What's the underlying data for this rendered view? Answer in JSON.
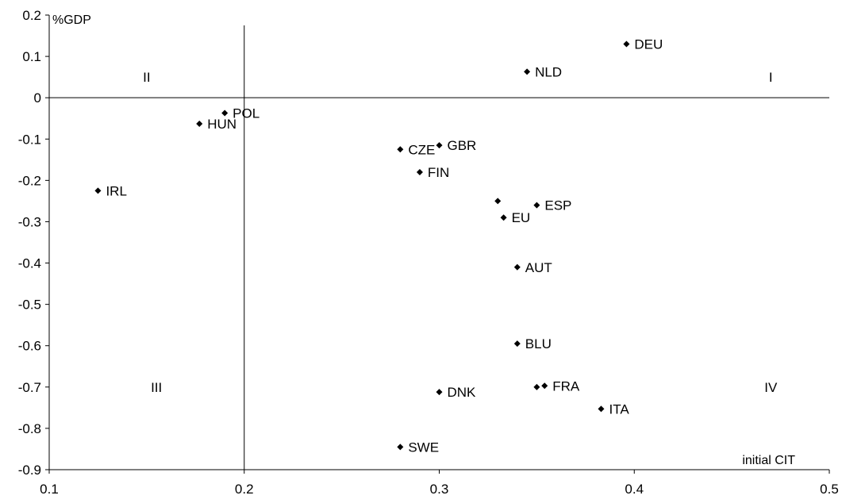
{
  "chart_data": {
    "type": "scatter",
    "title": "",
    "xlabel": "initial CIT",
    "ylabel": "%GDP",
    "xlim": [
      0.1,
      0.5
    ],
    "ylim": [
      -0.9,
      0.2
    ],
    "x_ticks": [
      0.1,
      0.2,
      0.3,
      0.4,
      0.5
    ],
    "x_tick_labels": [
      "0.1",
      "0.2",
      "0.3",
      "0.4",
      "0.5"
    ],
    "y_ticks": [
      0.2,
      0.1,
      0,
      -0.1,
      -0.2,
      -0.3,
      -0.4,
      -0.5,
      -0.6,
      -0.7,
      -0.8,
      -0.9
    ],
    "y_tick_labels": [
      "0.2",
      "0.1",
      "0",
      "-0.1",
      "-0.2",
      "-0.3",
      "-0.4",
      "-0.5",
      "-0.6",
      "-0.7",
      "-0.8",
      "-0.9"
    ],
    "grid": false,
    "divider_lines": {
      "x": 0.2,
      "y": 0
    },
    "quadrant_labels": [
      {
        "text": "I",
        "x": 0.47,
        "y": 0.05
      },
      {
        "text": "II",
        "x": 0.15,
        "y": 0.05
      },
      {
        "text": "III",
        "x": 0.155,
        "y": -0.7
      },
      {
        "text": "IV",
        "x": 0.47,
        "y": -0.7
      }
    ],
    "points": [
      {
        "label": "DEU",
        "x": 0.396,
        "y": 0.13
      },
      {
        "label": "NLD",
        "x": 0.345,
        "y": 0.063
      },
      {
        "label": "POL",
        "x": 0.19,
        "y": -0.037
      },
      {
        "label": "HUN",
        "x": 0.177,
        "y": -0.063
      },
      {
        "label": "CZE",
        "x": 0.28,
        "y": -0.125
      },
      {
        "label": "GBR",
        "x": 0.3,
        "y": -0.115
      },
      {
        "label": "FIN",
        "x": 0.29,
        "y": -0.18
      },
      {
        "label": "IRL",
        "x": 0.125,
        "y": -0.225
      },
      {
        "label": "",
        "x": 0.33,
        "y": -0.25
      },
      {
        "label": "ESP",
        "x": 0.35,
        "y": -0.26
      },
      {
        "label": "EU",
        "x": 0.333,
        "y": -0.29
      },
      {
        "label": "AUT",
        "x": 0.34,
        "y": -0.41
      },
      {
        "label": "BLU",
        "x": 0.34,
        "y": -0.595
      },
      {
        "label": "",
        "x": 0.35,
        "y": -0.7
      },
      {
        "label": "FRA",
        "x": 0.354,
        "y": -0.697
      },
      {
        "label": "DNK",
        "x": 0.3,
        "y": -0.712
      },
      {
        "label": "ITA",
        "x": 0.383,
        "y": -0.753
      },
      {
        "label": "SWE",
        "x": 0.28,
        "y": -0.845
      }
    ],
    "marker": "diamond",
    "marker_color": "#000000"
  }
}
